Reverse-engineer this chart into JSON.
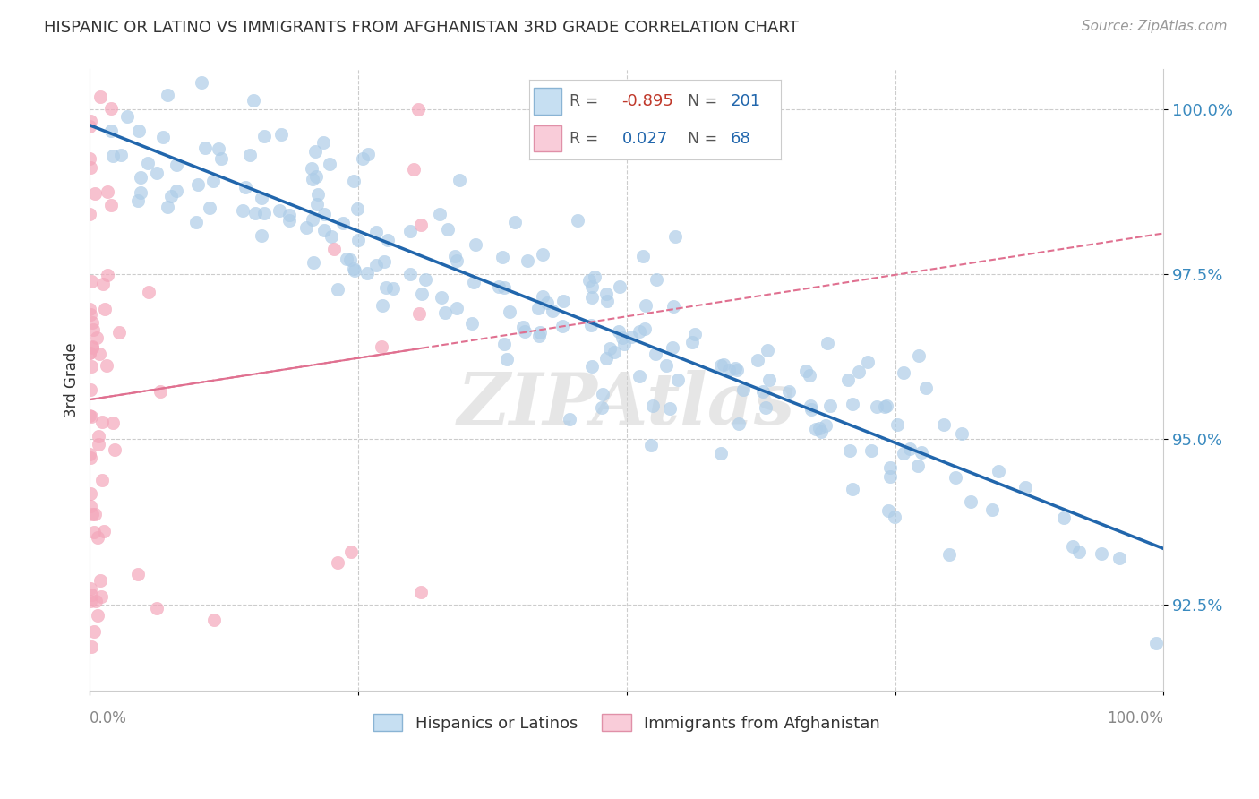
{
  "title": "HISPANIC OR LATINO VS IMMIGRANTS FROM AFGHANISTAN 3RD GRADE CORRELATION CHART",
  "source": "Source: ZipAtlas.com",
  "ylabel": "3rd Grade",
  "r_blue": -0.895,
  "n_blue": 201,
  "r_pink": 0.027,
  "n_pink": 68,
  "watermark": "ZIPAtlas",
  "blue_color": "#aecde8",
  "pink_color": "#f4a7bb",
  "blue_line_color": "#2166ac",
  "pink_line_color": "#e07090",
  "ytick_labels": [
    "92.5%",
    "95.0%",
    "97.5%",
    "100.0%"
  ],
  "ytick_values": [
    0.925,
    0.95,
    0.975,
    1.0
  ],
  "xlim": [
    0.0,
    1.0
  ],
  "ylim": [
    0.912,
    1.006
  ]
}
